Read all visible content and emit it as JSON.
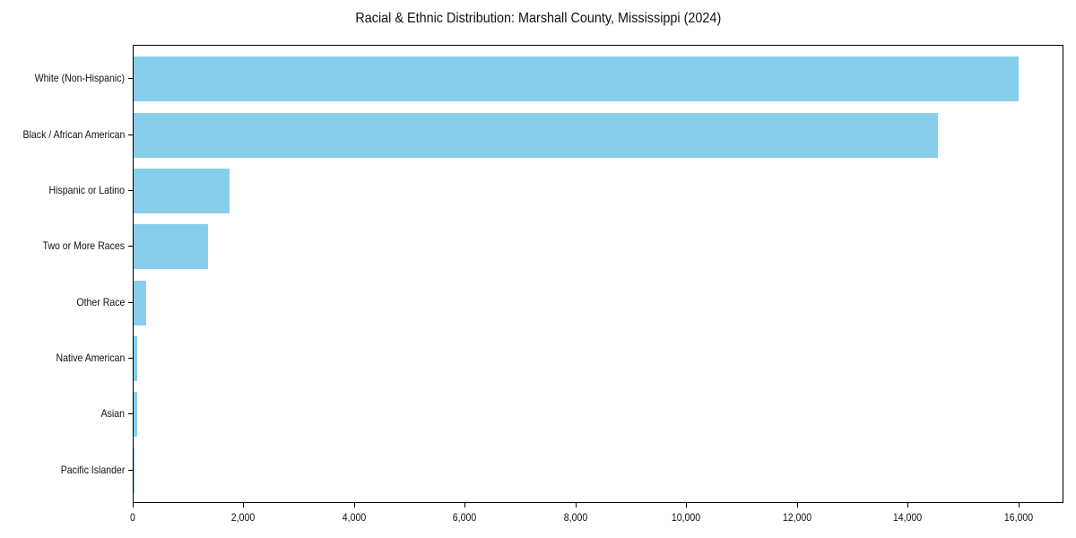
{
  "chart_data": {
    "type": "bar",
    "orientation": "horizontal",
    "title": "Racial & Ethnic Distribution: Marshall County, Mississippi (2024)",
    "xlabel": "",
    "ylabel": "",
    "categories": [
      "White (Non-Hispanic)",
      "Black / African American",
      "Hispanic or Latino",
      "Two or More Races",
      "Other Race",
      "Native American",
      "Asian",
      "Pacific Islander"
    ],
    "values": [
      15990,
      14530,
      1740,
      1340,
      225,
      60,
      60,
      10
    ],
    "xlim": [
      0,
      16810
    ],
    "xticks": [
      0,
      2000,
      4000,
      6000,
      8000,
      10000,
      12000,
      14000,
      16000
    ],
    "xtick_labels": [
      "0",
      "2,000",
      "4,000",
      "6,000",
      "8,000",
      "10,000",
      "12,000",
      "14,000",
      "16,000"
    ],
    "grid": false,
    "legend": null,
    "bar_color": "#87CEEB"
  }
}
